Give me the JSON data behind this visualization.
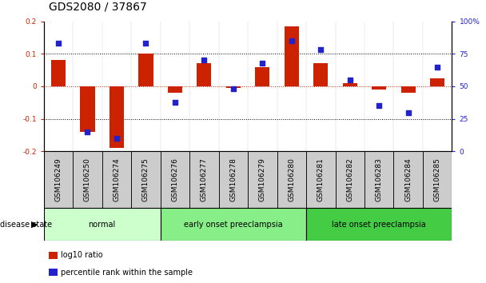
{
  "title": "GDS2080 / 37867",
  "samples": [
    "GSM106249",
    "GSM106250",
    "GSM106274",
    "GSM106275",
    "GSM106276",
    "GSM106277",
    "GSM106278",
    "GSM106279",
    "GSM106280",
    "GSM106281",
    "GSM106282",
    "GSM106283",
    "GSM106284",
    "GSM106285"
  ],
  "log10_ratio": [
    0.08,
    -0.14,
    -0.19,
    0.1,
    -0.02,
    0.07,
    -0.005,
    0.06,
    0.185,
    0.07,
    0.01,
    -0.01,
    -0.02,
    0.025
  ],
  "percentile_rank": [
    83,
    15,
    10,
    83,
    38,
    70,
    48,
    68,
    85,
    78,
    55,
    35,
    30,
    65
  ],
  "ylim": [
    -0.2,
    0.2
  ],
  "yticks_left": [
    -0.2,
    -0.1,
    0.0,
    0.1,
    0.2
  ],
  "ytick_labels_left": [
    "-0.2",
    "-0.1",
    "0",
    "0.1",
    "0.2"
  ],
  "yticks_right": [
    0,
    25,
    50,
    75,
    100
  ],
  "ytick_labels_right": [
    "0",
    "25",
    "50",
    "75",
    "100%"
  ],
  "bar_color": "#cc2200",
  "dot_color": "#2222cc",
  "zero_line_color": "#cc2200",
  "grid_color": "#000000",
  "disease_groups": [
    {
      "label": "normal",
      "start": 0,
      "end": 3,
      "color": "#ccffcc"
    },
    {
      "label": "early onset preeclampsia",
      "start": 4,
      "end": 8,
      "color": "#88ee88"
    },
    {
      "label": "late onset preeclampsia",
      "start": 9,
      "end": 13,
      "color": "#44cc44"
    }
  ],
  "title_fontsize": 10,
  "tick_fontsize": 6.5,
  "bar_width": 0.5,
  "sample_box_color": "#cccccc",
  "fig_width": 6.08,
  "fig_height": 3.54
}
